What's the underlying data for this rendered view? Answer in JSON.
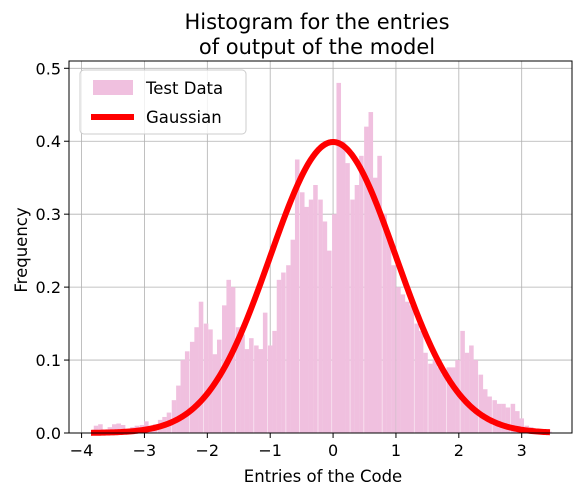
{
  "chart_data": {
    "type": "bar",
    "title": "Histogram for the entries\nof output of the model",
    "title_lines": [
      "Histogram for the entries",
      "of output of the model"
    ],
    "xlabel": "Entries of the Code",
    "ylabel": "Frequency",
    "xlim": [
      -4.2,
      3.8
    ],
    "ylim": [
      0,
      0.51
    ],
    "xticks": [
      -4,
      -3,
      -2,
      -1,
      0,
      1,
      2,
      3
    ],
    "xtick_labels": [
      "−4",
      "−3",
      "−2",
      "−1",
      "0",
      "1",
      "2",
      "3"
    ],
    "yticks": [
      0.0,
      0.1,
      0.2,
      0.3,
      0.4,
      0.5
    ],
    "ytick_labels": [
      "0.0",
      "0.1",
      "0.2",
      "0.3",
      "0.4",
      "0.5"
    ],
    "grid": true,
    "legend_position": "top-left",
    "legend": [
      "Test Data",
      "Gaussian"
    ],
    "colors": {
      "histogram": "#f0c0df",
      "gaussian": "#ff0000",
      "grid": "#b0b0b0"
    },
    "histogram": {
      "name": "Test Data",
      "bin_width": 0.0725,
      "bins": [
        {
          "x": -3.77,
          "y": 0.01
        },
        {
          "x": -3.7,
          "y": 0.012
        },
        {
          "x": -3.63,
          "y": 0.005
        },
        {
          "x": -3.55,
          "y": 0.008
        },
        {
          "x": -3.48,
          "y": 0.012
        },
        {
          "x": -3.41,
          "y": 0.013
        },
        {
          "x": -3.34,
          "y": 0.011
        },
        {
          "x": -3.26,
          "y": 0.006
        },
        {
          "x": -3.19,
          "y": 0.008
        },
        {
          "x": -3.12,
          "y": 0.01
        },
        {
          "x": -3.04,
          "y": 0.011
        },
        {
          "x": -2.97,
          "y": 0.016
        },
        {
          "x": -2.9,
          "y": 0.01
        },
        {
          "x": -2.83,
          "y": 0.012
        },
        {
          "x": -2.75,
          "y": 0.018
        },
        {
          "x": -2.68,
          "y": 0.022
        },
        {
          "x": -2.61,
          "y": 0.028
        },
        {
          "x": -2.53,
          "y": 0.045
        },
        {
          "x": -2.46,
          "y": 0.065
        },
        {
          "x": -2.39,
          "y": 0.1
        },
        {
          "x": -2.32,
          "y": 0.112
        },
        {
          "x": -2.24,
          "y": 0.125
        },
        {
          "x": -2.17,
          "y": 0.145
        },
        {
          "x": -2.1,
          "y": 0.18
        },
        {
          "x": -2.02,
          "y": 0.15
        },
        {
          "x": -1.95,
          "y": 0.142
        },
        {
          "x": -1.88,
          "y": 0.108
        },
        {
          "x": -1.81,
          "y": 0.128
        },
        {
          "x": -1.73,
          "y": 0.175
        },
        {
          "x": -1.66,
          "y": 0.21
        },
        {
          "x": -1.59,
          "y": 0.2
        },
        {
          "x": -1.51,
          "y": 0.145
        },
        {
          "x": -1.44,
          "y": 0.135
        },
        {
          "x": -1.37,
          "y": 0.115
        },
        {
          "x": -1.3,
          "y": 0.13
        },
        {
          "x": -1.22,
          "y": 0.12
        },
        {
          "x": -1.15,
          "y": 0.115
        },
        {
          "x": -1.08,
          "y": 0.165
        },
        {
          "x": -1.0,
          "y": 0.12
        },
        {
          "x": -0.93,
          "y": 0.14
        },
        {
          "x": -0.86,
          "y": 0.21
        },
        {
          "x": -0.79,
          "y": 0.22
        },
        {
          "x": -0.71,
          "y": 0.23
        },
        {
          "x": -0.64,
          "y": 0.265
        },
        {
          "x": -0.57,
          "y": 0.375
        },
        {
          "x": -0.49,
          "y": 0.33
        },
        {
          "x": -0.42,
          "y": 0.31
        },
        {
          "x": -0.35,
          "y": 0.32
        },
        {
          "x": -0.28,
          "y": 0.34
        },
        {
          "x": -0.2,
          "y": 0.32
        },
        {
          "x": -0.13,
          "y": 0.29
        },
        {
          "x": -0.06,
          "y": 0.25
        },
        {
          "x": 0.02,
          "y": 0.3
        },
        {
          "x": 0.09,
          "y": 0.48
        },
        {
          "x": 0.16,
          "y": 0.4
        },
        {
          "x": 0.23,
          "y": 0.37
        },
        {
          "x": 0.31,
          "y": 0.32
        },
        {
          "x": 0.38,
          "y": 0.34
        },
        {
          "x": 0.45,
          "y": 0.38
        },
        {
          "x": 0.53,
          "y": 0.42
        },
        {
          "x": 0.6,
          "y": 0.44
        },
        {
          "x": 0.67,
          "y": 0.35
        },
        {
          "x": 0.74,
          "y": 0.38
        },
        {
          "x": 0.82,
          "y": 0.3
        },
        {
          "x": 0.89,
          "y": 0.27
        },
        {
          "x": 0.96,
          "y": 0.23
        },
        {
          "x": 1.04,
          "y": 0.2
        },
        {
          "x": 1.11,
          "y": 0.19
        },
        {
          "x": 1.18,
          "y": 0.18
        },
        {
          "x": 1.25,
          "y": 0.175
        },
        {
          "x": 1.33,
          "y": 0.15
        },
        {
          "x": 1.4,
          "y": 0.14
        },
        {
          "x": 1.47,
          "y": 0.11
        },
        {
          "x": 1.55,
          "y": 0.095
        },
        {
          "x": 1.62,
          "y": 0.1
        },
        {
          "x": 1.69,
          "y": 0.09
        },
        {
          "x": 1.76,
          "y": 0.08
        },
        {
          "x": 1.84,
          "y": 0.09
        },
        {
          "x": 1.91,
          "y": 0.09
        },
        {
          "x": 1.98,
          "y": 0.1
        },
        {
          "x": 2.06,
          "y": 0.14
        },
        {
          "x": 2.13,
          "y": 0.11
        },
        {
          "x": 2.2,
          "y": 0.12
        },
        {
          "x": 2.27,
          "y": 0.1
        },
        {
          "x": 2.35,
          "y": 0.08
        },
        {
          "x": 2.42,
          "y": 0.06
        },
        {
          "x": 2.49,
          "y": 0.05
        },
        {
          "x": 2.57,
          "y": 0.045
        },
        {
          "x": 2.64,
          "y": 0.04
        },
        {
          "x": 2.71,
          "y": 0.04
        },
        {
          "x": 2.78,
          "y": 0.035
        },
        {
          "x": 2.86,
          "y": 0.04
        },
        {
          "x": 2.93,
          "y": 0.03
        },
        {
          "x": 3.0,
          "y": 0.02
        },
        {
          "x": 3.08,
          "y": 0.01
        },
        {
          "x": 3.15,
          "y": 0.008
        },
        {
          "x": 3.22,
          "y": 0.006
        },
        {
          "x": 3.29,
          "y": 0.004
        },
        {
          "x": 3.37,
          "y": 0.003
        },
        {
          "x": 3.44,
          "y": 0.002
        }
      ]
    },
    "gaussian": {
      "name": "Gaussian",
      "mean": 0,
      "std": 1,
      "x_range": [
        -3.85,
        3.45
      ]
    }
  }
}
